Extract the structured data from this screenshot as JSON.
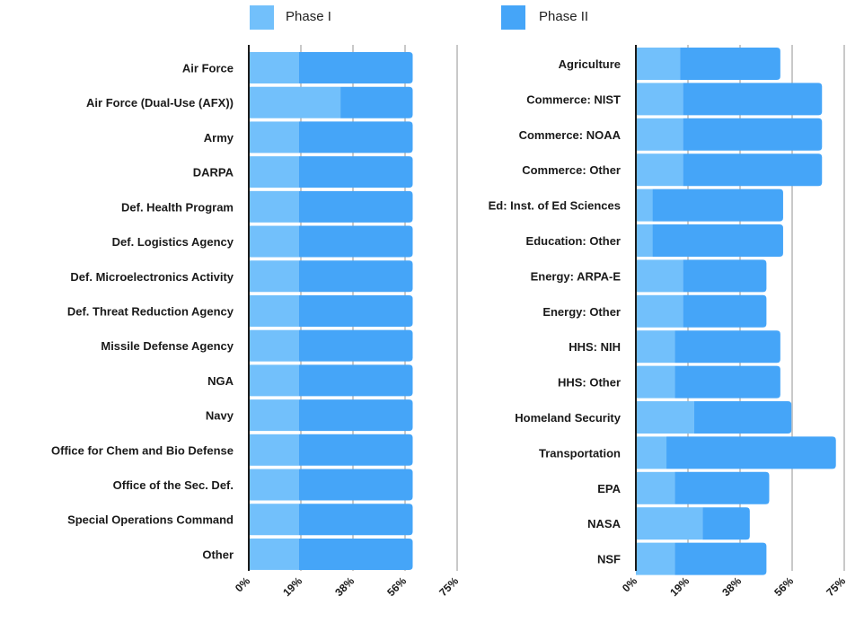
{
  "legend": [
    {
      "name": "Phase I",
      "color": "#72c0fb"
    },
    {
      "name": "Phase II",
      "color": "#45a5f8"
    }
  ],
  "chart_data": [
    {
      "type": "bar",
      "orientation": "horizontal",
      "stacked": true,
      "xlim": [
        0,
        75
      ],
      "ticks": [
        "0%",
        "19%",
        "38%",
        "56%",
        "75%"
      ],
      "tick_values": [
        0,
        18.75,
        37.5,
        56.25,
        75
      ],
      "gridlines": "vertical at tick values",
      "categories": [
        "Air Force",
        "Air Force (Dual-Use (AFX))",
        "Army",
        "DARPA",
        "Def. Health Program",
        "Def. Logistics Agency",
        "Def. Microelectronics Activity",
        "Def. Threat Reduction Agency",
        "Missile Defense Agency",
        "NGA",
        "Navy",
        "Office for Chem and Bio Defense",
        "Office of the Sec. Def.",
        "Special Operations Command",
        "Other"
      ],
      "series": [
        {
          "name": "Phase I",
          "values": [
            18,
            33,
            18,
            18,
            18,
            18,
            18,
            18,
            18,
            18,
            18,
            18,
            18,
            18,
            18
          ]
        },
        {
          "name": "Phase II",
          "values": [
            41,
            26,
            41,
            41,
            41,
            41,
            41,
            41,
            41,
            41,
            41,
            41,
            41,
            41,
            41
          ]
        }
      ]
    },
    {
      "type": "bar",
      "orientation": "horizontal",
      "stacked": true,
      "xlim": [
        0,
        75
      ],
      "ticks": [
        "0%",
        "19%",
        "38%",
        "56%",
        "75%"
      ],
      "tick_values": [
        0,
        18.75,
        37.5,
        56.25,
        75
      ],
      "gridlines": "vertical at tick values",
      "categories": [
        "Agriculture",
        "Commerce: NIST",
        "Commerce: NOAA",
        "Commerce: Other",
        "Ed: Inst. of Ed Sciences",
        "Education: Other",
        "Energy: ARPA-E",
        "Energy: Other",
        "HHS: NIH",
        "HHS: Other",
        "Homeland Security",
        "Transportation",
        "EPA",
        "NASA",
        "NSF"
      ],
      "series": [
        {
          "name": "Phase I",
          "values": [
            16,
            17,
            17,
            17,
            6,
            6,
            17,
            17,
            14,
            14,
            21,
            11,
            14,
            24,
            14
          ]
        },
        {
          "name": "Phase II",
          "values": [
            36,
            50,
            50,
            50,
            47,
            47,
            30,
            30,
            38,
            38,
            35,
            61,
            34,
            17,
            33
          ]
        }
      ]
    }
  ]
}
